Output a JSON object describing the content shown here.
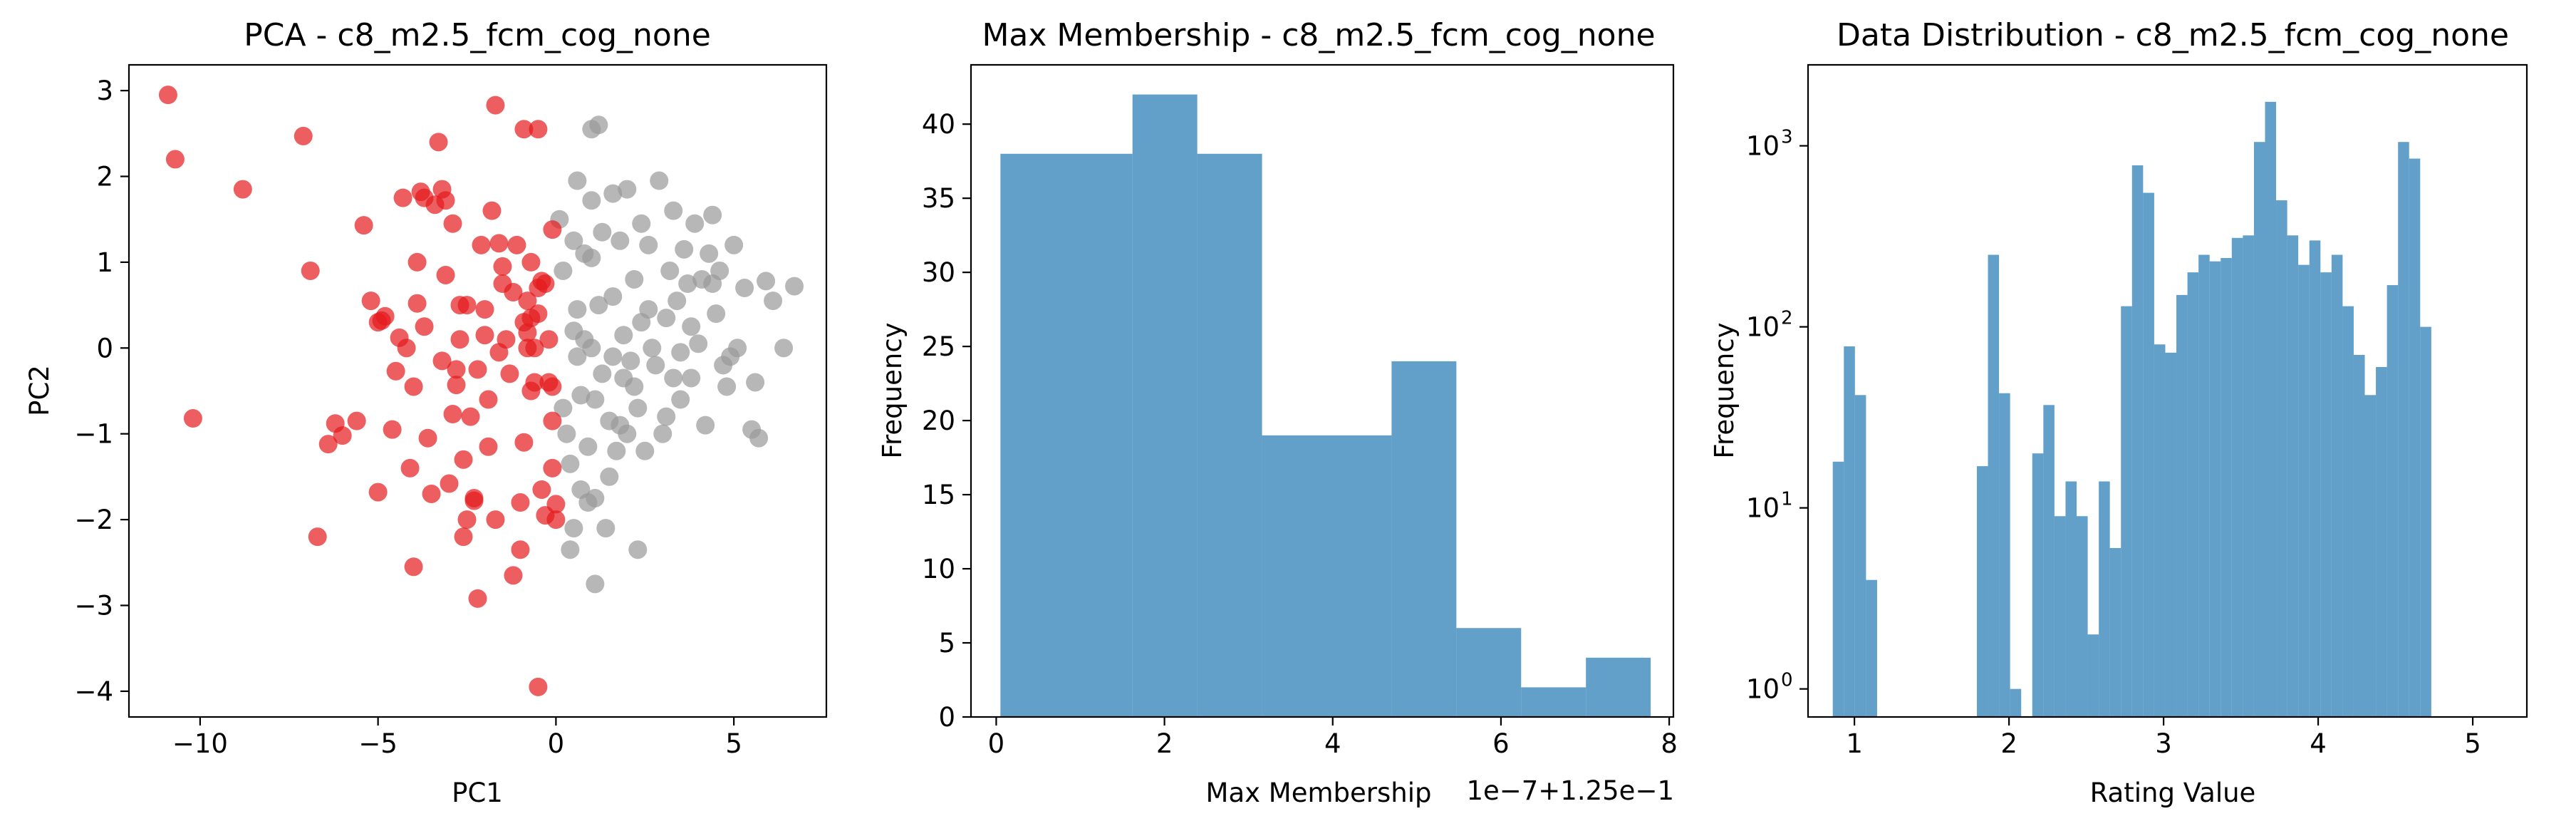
{
  "chart_data": [
    {
      "type": "scatter",
      "title": "PCA - c8_m2.5_fcm_cog_none",
      "xlabel": "PC1",
      "ylabel": "PC2",
      "xlim": [
        -12,
        7.6
      ],
      "ylim": [
        -4.3,
        3.3
      ],
      "xticks": [
        -10,
        -5,
        0,
        5
      ],
      "xtick_labels": [
        "−10",
        "−5",
        "0",
        "5"
      ],
      "yticks": [
        -4,
        -3,
        -2,
        -1,
        0,
        1,
        2,
        3
      ],
      "ytick_labels": [
        "−4",
        "−3",
        "−2",
        "−1",
        "0",
        "1",
        "2",
        "3"
      ],
      "grid": false,
      "series": [
        {
          "color": "#e41a1c",
          "points": [
            [
              -10.9,
              2.95
            ],
            [
              -10.7,
              2.2
            ],
            [
              -10.2,
              -0.82
            ],
            [
              -8.8,
              1.85
            ],
            [
              -7.1,
              2.47
            ],
            [
              -6.9,
              0.9
            ],
            [
              -6.7,
              -2.2
            ],
            [
              -6.4,
              -1.12
            ],
            [
              -6.2,
              -0.88
            ],
            [
              -6.0,
              -1.02
            ],
            [
              -5.6,
              -0.85
            ],
            [
              -5.4,
              1.43
            ],
            [
              -5.2,
              0.55
            ],
            [
              -5.0,
              -1.68
            ],
            [
              -4.9,
              0.32
            ],
            [
              -4.8,
              0.37
            ],
            [
              -4.6,
              -0.95
            ],
            [
              -4.5,
              -0.27
            ],
            [
              -4.4,
              0.12
            ],
            [
              -4.2,
              0.0
            ],
            [
              -4.1,
              -1.4
            ],
            [
              -4.0,
              -2.55
            ],
            [
              -4.0,
              -0.45
            ],
            [
              -3.9,
              0.52
            ],
            [
              -3.9,
              1.0
            ],
            [
              -3.8,
              1.82
            ],
            [
              -3.7,
              1.75
            ],
            [
              -3.6,
              -1.05
            ],
            [
              -3.5,
              -1.7
            ],
            [
              -3.4,
              1.67
            ],
            [
              -3.3,
              2.4
            ],
            [
              -3.2,
              1.85
            ],
            [
              -3.1,
              1.72
            ],
            [
              -3.1,
              0.85
            ],
            [
              -3.0,
              -1.58
            ],
            [
              -2.9,
              -0.77
            ],
            [
              -2.8,
              -0.25
            ],
            [
              -2.8,
              -0.43
            ],
            [
              -2.7,
              0.5
            ],
            [
              -2.7,
              0.1
            ],
            [
              -2.6,
              -2.2
            ],
            [
              -2.5,
              -2.0
            ],
            [
              -2.5,
              0.5
            ],
            [
              -2.4,
              -0.8
            ],
            [
              -2.3,
              -1.75
            ],
            [
              -2.3,
              -1.78
            ],
            [
              -2.2,
              -2.92
            ],
            [
              -2.2,
              -0.25
            ],
            [
              -2.1,
              1.2
            ],
            [
              -2.0,
              0.45
            ],
            [
              -2.0,
              0.15
            ],
            [
              -1.9,
              -1.15
            ],
            [
              -1.8,
              1.6
            ],
            [
              -1.7,
              2.83
            ],
            [
              -1.7,
              -2.0
            ],
            [
              -1.6,
              1.22
            ],
            [
              -1.5,
              0.95
            ],
            [
              -1.5,
              0.75
            ],
            [
              -1.4,
              0.1
            ],
            [
              -1.3,
              -0.3
            ],
            [
              -1.2,
              -2.65
            ],
            [
              -1.1,
              1.2
            ],
            [
              -1.0,
              -1.8
            ],
            [
              -1.0,
              -2.35
            ],
            [
              -0.9,
              0.3
            ],
            [
              -0.9,
              2.55
            ],
            [
              -0.8,
              0.55
            ],
            [
              -0.8,
              0.18
            ],
            [
              -0.8,
              0.0
            ],
            [
              -0.7,
              -0.5
            ],
            [
              -0.7,
              0.35
            ],
            [
              -0.7,
              1.0
            ],
            [
              -0.6,
              0.0
            ],
            [
              -0.6,
              -0.4
            ],
            [
              -0.5,
              0.7
            ],
            [
              -0.5,
              0.4
            ],
            [
              -0.5,
              2.55
            ],
            [
              -0.5,
              -3.95
            ],
            [
              -0.4,
              0.78
            ],
            [
              -0.4,
              -1.65
            ],
            [
              -0.3,
              -1.95
            ],
            [
              -0.3,
              0.75
            ],
            [
              -0.2,
              0.1
            ],
            [
              -0.2,
              -0.4
            ],
            [
              -0.1,
              1.38
            ],
            [
              -0.1,
              -0.45
            ],
            [
              -0.1,
              -1.4
            ],
            [
              -0.1,
              -0.85
            ],
            [
              0.0,
              -1.82
            ],
            [
              0.0,
              -2.0
            ],
            [
              -4.3,
              1.75
            ],
            [
              -2.6,
              -1.3
            ],
            [
              -1.6,
              -0.05
            ],
            [
              -3.7,
              0.25
            ],
            [
              -1.2,
              0.65
            ],
            [
              -5.0,
              0.3
            ],
            [
              -2.9,
              1.45
            ],
            [
              -1.9,
              -0.6
            ],
            [
              -0.9,
              -1.1
            ],
            [
              -3.2,
              -0.15
            ]
          ]
        },
        {
          "color": "#999999",
          "points": [
            [
              0.1,
              1.5
            ],
            [
              0.2,
              0.9
            ],
            [
              0.2,
              -0.7
            ],
            [
              0.3,
              -1.0
            ],
            [
              0.4,
              -2.35
            ],
            [
              0.4,
              -1.35
            ],
            [
              0.5,
              -2.1
            ],
            [
              0.5,
              1.25
            ],
            [
              0.5,
              0.2
            ],
            [
              0.6,
              0.45
            ],
            [
              0.6,
              -0.1
            ],
            [
              0.7,
              -0.55
            ],
            [
              0.7,
              -1.65
            ],
            [
              0.8,
              1.1
            ],
            [
              0.8,
              0.1
            ],
            [
              0.9,
              -1.15
            ],
            [
              0.9,
              -1.8
            ],
            [
              1.0,
              2.55
            ],
            [
              1.0,
              1.72
            ],
            [
              1.0,
              0.0
            ],
            [
              1.1,
              -0.6
            ],
            [
              1.1,
              -1.75
            ],
            [
              1.1,
              -2.75
            ],
            [
              1.2,
              2.6
            ],
            [
              1.2,
              0.5
            ],
            [
              1.3,
              -0.3
            ],
            [
              1.3,
              1.35
            ],
            [
              1.4,
              -2.1
            ],
            [
              1.5,
              -0.85
            ],
            [
              1.5,
              -1.5
            ],
            [
              1.6,
              1.8
            ],
            [
              1.6,
              0.6
            ],
            [
              1.7,
              -1.2
            ],
            [
              1.8,
              1.25
            ],
            [
              1.8,
              -0.9
            ],
            [
              1.9,
              -0.35
            ],
            [
              1.9,
              0.15
            ],
            [
              2.0,
              1.85
            ],
            [
              2.0,
              -1.0
            ],
            [
              2.2,
              0.8
            ],
            [
              2.2,
              -0.45
            ],
            [
              2.3,
              -0.7
            ],
            [
              2.3,
              -2.35
            ],
            [
              2.4,
              1.45
            ],
            [
              2.4,
              0.3
            ],
            [
              2.5,
              -1.2
            ],
            [
              2.6,
              1.2
            ],
            [
              2.7,
              0.0
            ],
            [
              2.8,
              -0.2
            ],
            [
              2.9,
              1.95
            ],
            [
              3.0,
              -1.0
            ],
            [
              3.1,
              0.35
            ],
            [
              3.1,
              -0.8
            ],
            [
              3.2,
              0.9
            ],
            [
              3.3,
              1.6
            ],
            [
              3.4,
              0.55
            ],
            [
              3.5,
              -0.6
            ],
            [
              3.5,
              -0.05
            ],
            [
              3.6,
              1.15
            ],
            [
              3.7,
              0.75
            ],
            [
              3.8,
              -0.35
            ],
            [
              3.9,
              1.45
            ],
            [
              4.0,
              0.05
            ],
            [
              4.1,
              0.8
            ],
            [
              4.2,
              -0.9
            ],
            [
              4.3,
              1.1
            ],
            [
              4.4,
              1.55
            ],
            [
              4.5,
              0.4
            ],
            [
              4.6,
              0.9
            ],
            [
              4.7,
              -0.2
            ],
            [
              4.8,
              -0.45
            ],
            [
              5.0,
              1.2
            ],
            [
              5.1,
              0.0
            ],
            [
              5.3,
              0.7
            ],
            [
              5.5,
              -0.95
            ],
            [
              5.6,
              -0.4
            ],
            [
              5.7,
              -1.05
            ],
            [
              5.9,
              0.78
            ],
            [
              6.1,
              0.55
            ],
            [
              6.4,
              0.0
            ],
            [
              6.7,
              0.72
            ],
            [
              1.0,
              1.05
            ],
            [
              2.6,
              0.45
            ],
            [
              3.8,
              0.25
            ],
            [
              4.9,
              -0.1
            ],
            [
              0.6,
              1.95
            ],
            [
              2.1,
              -0.15
            ],
            [
              3.3,
              -0.35
            ],
            [
              4.4,
              0.75
            ],
            [
              1.6,
              -0.1
            ]
          ]
        }
      ]
    },
    {
      "type": "bar",
      "title": "Max Membership - c8_m2.5_fcm_cog_none",
      "xlabel": "Max Membership",
      "ylabel": "Frequency",
      "offset_label": "1e−7+1.25e−1",
      "xlim": [
        -0.3,
        8.05
      ],
      "ylim": [
        0,
        44
      ],
      "xticks": [
        0,
        2,
        4,
        6,
        8
      ],
      "xtick_labels": [
        "0",
        "2",
        "4",
        "6",
        "8"
      ],
      "yticks": [
        0,
        5,
        10,
        15,
        20,
        25,
        30,
        35,
        40
      ],
      "ytick_labels": [
        "0",
        "5",
        "10",
        "15",
        "20",
        "25",
        "30",
        "35",
        "40"
      ],
      "bin_edges": [
        0.05,
        1.62,
        2.39,
        3.16,
        4.7,
        5.47,
        6.24,
        7.01,
        7.78
      ],
      "values": [
        38,
        42,
        38,
        19,
        24,
        6,
        2,
        4
      ],
      "color": "#1f77b4"
    },
    {
      "type": "bar",
      "title": "Data Distribution - c8_m2.5_fcm_cog_none",
      "xlabel": "Rating Value",
      "ylabel": "Frequency",
      "yscale": "log",
      "xlim": [
        0.7,
        5.35
      ],
      "ylim": [
        0.7,
        2800
      ],
      "xticks": [
        1,
        2,
        3,
        4,
        5
      ],
      "xtick_labels": [
        "1",
        "2",
        "3",
        "4",
        "5"
      ],
      "yticks": [
        1,
        10,
        100,
        1000
      ],
      "ytick_labels": [
        "10",
        "10",
        "10",
        "10"
      ],
      "ytick_exponents": [
        "0",
        "1",
        "2",
        "3"
      ],
      "bin_start": 0.86,
      "bin_width": 0.0717,
      "values": [
        18,
        78,
        42,
        4,
        0,
        0,
        0,
        0,
        0,
        0,
        0,
        0,
        0,
        17,
        250,
        43,
        1,
        0,
        20,
        37,
        9,
        14,
        9,
        2,
        14,
        6,
        130,
        780,
        550,
        80,
        72,
        150,
        200,
        250,
        230,
        240,
        310,
        320,
        1050,
        1750,
        500,
        320,
        220,
        300,
        200,
        250,
        130,
        70,
        42,
        60,
        170,
        1050,
        850,
        100
      ],
      "color": "#1f77b4"
    }
  ]
}
